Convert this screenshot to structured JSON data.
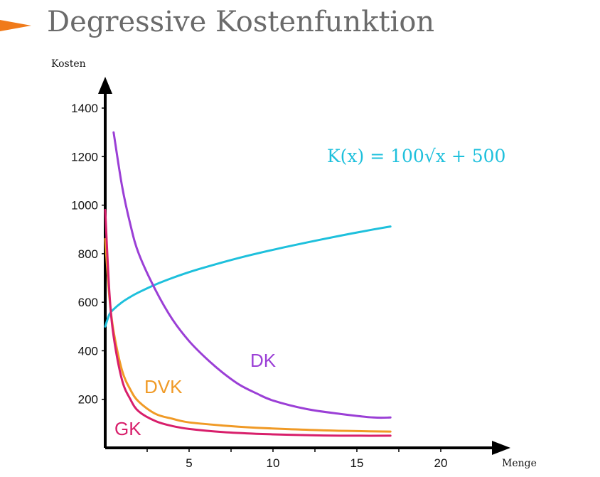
{
  "slide": {
    "title": "Degressive Kostenfunktion",
    "marker_color": "#f07a1a"
  },
  "chart_data": {
    "type": "line",
    "title": "",
    "ylabel": "Kosten",
    "xlabel": "Menge",
    "xlim": [
      0,
      23
    ],
    "ylim": [
      0,
      1400
    ],
    "x_ticks": [
      5,
      10,
      15,
      20
    ],
    "y_ticks": [
      200,
      400,
      600,
      800,
      1000,
      1200,
      1400
    ],
    "grid": false,
    "annotation": {
      "text": "K(x) = 100√x + 500",
      "color": "#1ec0dc"
    },
    "series": [
      {
        "name": "",
        "color": "#1ec0dc",
        "x": [
          0,
          0.25,
          0.5,
          1,
          1.5,
          2,
          3,
          4,
          5,
          6,
          8,
          10,
          12,
          14,
          16,
          17
        ],
        "y": [
          500,
          550,
          571,
          600,
          622,
          641,
          673,
          700,
          724,
          745,
          783,
          816,
          846,
          874,
          900,
          912
        ]
      },
      {
        "name": "DK",
        "color": "#9b3fd6",
        "x": [
          0.5,
          1,
          1.5,
          2,
          3,
          4,
          5,
          6,
          7,
          8,
          9,
          10,
          12,
          14,
          16,
          17
        ],
        "y": [
          1300,
          1080,
          920,
          800,
          650,
          530,
          440,
          370,
          310,
          260,
          225,
          195,
          160,
          140,
          125,
          125
        ]
      },
      {
        "name": "DVK",
        "color": "#f09a26",
        "x": [
          0,
          0.25,
          0.5,
          1,
          1.5,
          2,
          3,
          4,
          5,
          7,
          9,
          11,
          13,
          15,
          17
        ],
        "y": [
          860,
          620,
          480,
          320,
          240,
          190,
          140,
          120,
          105,
          92,
          83,
          77,
          72,
          69,
          67
        ]
      },
      {
        "name": "GK",
        "color": "#d81f6b",
        "x": [
          0,
          0.25,
          0.5,
          1,
          1.5,
          2,
          3,
          4,
          5,
          7,
          9,
          11,
          13,
          15,
          17
        ],
        "y": [
          980,
          640,
          460,
          280,
          200,
          150,
          110,
          90,
          78,
          65,
          58,
          54,
          51,
          50,
          50
        ]
      }
    ]
  }
}
